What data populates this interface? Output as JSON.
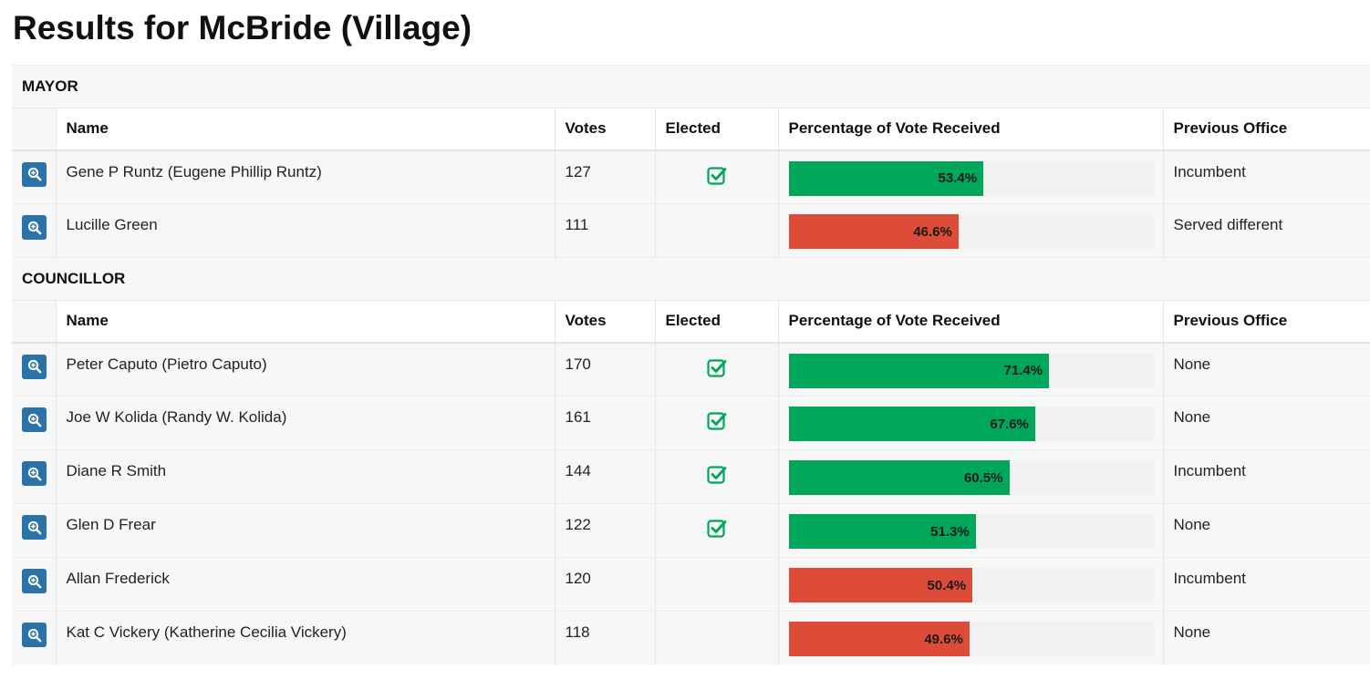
{
  "page": {
    "title": "Results for McBride (Village)"
  },
  "colors": {
    "win": "#00a65a",
    "lose": "#dd4b39",
    "zoom_button": "#2b72a9",
    "check": "#00a65a"
  },
  "columns": {
    "name": "Name",
    "votes": "Votes",
    "elected": "Elected",
    "percentage": "Percentage of Vote Received",
    "previous_office": "Previous Office"
  },
  "offices": [
    {
      "title": "MAYOR",
      "candidates": [
        {
          "name": "Gene P Runtz (Eugene Phillip Runtz)",
          "votes": "127",
          "elected": true,
          "percentage": 53.4,
          "percentage_label": "53.4%",
          "previous_office": "Incumbent",
          "icon": "zoom-in-icon"
        },
        {
          "name": "Lucille Green",
          "votes": "111",
          "elected": false,
          "percentage": 46.6,
          "percentage_label": "46.6%",
          "previous_office": "Served different",
          "icon": "zoom-in-icon"
        }
      ]
    },
    {
      "title": "COUNCILLOR",
      "candidates": [
        {
          "name": "Peter Caputo (Pietro Caputo)",
          "votes": "170",
          "elected": true,
          "percentage": 71.4,
          "percentage_label": "71.4%",
          "previous_office": "None",
          "icon": "zoom-in-icon"
        },
        {
          "name": "Joe W Kolida (Randy W. Kolida)",
          "votes": "161",
          "elected": true,
          "percentage": 67.6,
          "percentage_label": "67.6%",
          "previous_office": "None",
          "icon": "zoom-in-icon"
        },
        {
          "name": "Diane R Smith",
          "votes": "144",
          "elected": true,
          "percentage": 60.5,
          "percentage_label": "60.5%",
          "previous_office": "Incumbent",
          "icon": "zoom-in-icon"
        },
        {
          "name": "Glen D Frear",
          "votes": "122",
          "elected": true,
          "percentage": 51.3,
          "percentage_label": "51.3%",
          "previous_office": "None",
          "icon": "zoom-in-icon"
        },
        {
          "name": "Allan Frederick",
          "votes": "120",
          "elected": false,
          "percentage": 50.4,
          "percentage_label": "50.4%",
          "previous_office": "Incumbent",
          "icon": "zoom-in-icon"
        },
        {
          "name": "Kat C Vickery (Katherine Cecilia Vickery)",
          "votes": "118",
          "elected": false,
          "percentage": 49.6,
          "percentage_label": "49.6%",
          "previous_office": "None",
          "icon": "zoom-in-icon"
        }
      ]
    }
  ]
}
